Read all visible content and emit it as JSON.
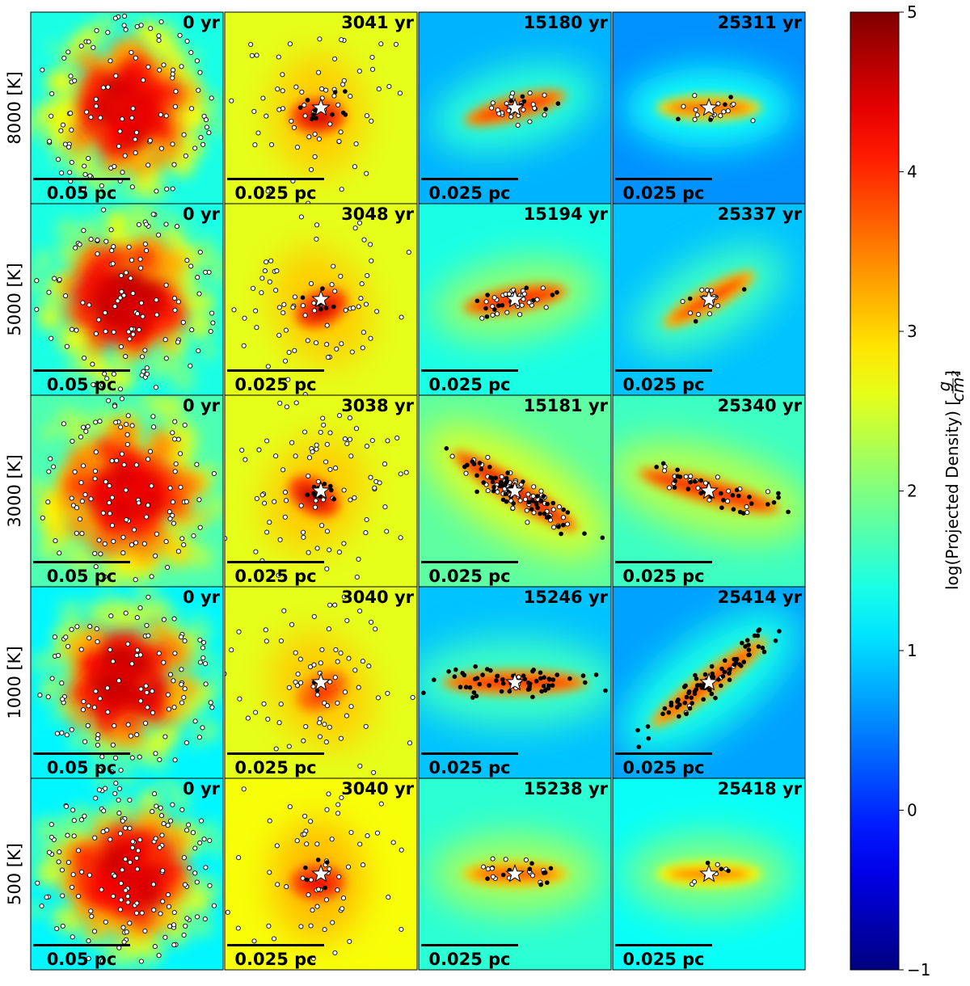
{
  "chart_data": {
    "type": "heatmap",
    "layout": "5 rows x 4 columns of projected density maps",
    "rows": [
      {
        "label": "8000 [K]",
        "times": [
          "0 yr",
          "3041 yr",
          "15180 yr",
          "25311 yr"
        ]
      },
      {
        "label": "5000 [K]",
        "times": [
          "0 yr",
          "3048 yr",
          "15194 yr",
          "25337 yr"
        ]
      },
      {
        "label": "3000 [K]",
        "times": [
          "0 yr",
          "3038 yr",
          "15181 yr",
          "25340 yr"
        ]
      },
      {
        "label": "1000 [K]",
        "times": [
          "0 yr",
          "3040 yr",
          "15246 yr",
          "25414 yr"
        ]
      },
      {
        "label": "500 [K]",
        "times": [
          "0 yr",
          "3040 yr",
          "15238 yr",
          "25418 yr"
        ]
      }
    ],
    "scalebars": [
      "0.05 pc",
      "0.025 pc",
      "0.025 pc",
      "0.025 pc"
    ],
    "colorbar": {
      "label": "log(Projected Density) [g/cm²]",
      "label_main": "log(Projected Density) [",
      "label_num": "g",
      "label_den": "cm²",
      "label_end": "]",
      "range": [
        -1,
        5
      ],
      "ticks": [
        "5",
        "4",
        "3",
        "2",
        "1",
        "0",
        "−1"
      ],
      "colormap": "jet"
    },
    "markers": {
      "star": "central sink (white star)",
      "open_circle": "white-filled particles",
      "filled_circle": "black-filled particles"
    },
    "panel_kind": [
      [
        "clump",
        "cloud",
        "blob",
        "blob"
      ],
      [
        "clump",
        "cloud",
        "blob",
        "blob"
      ],
      [
        "clump",
        "cloud",
        "filament",
        "filament"
      ],
      [
        "clump",
        "cloud",
        "filament",
        "filament"
      ],
      [
        "clump",
        "cloud",
        "blob",
        "blob"
      ]
    ],
    "background_level": [
      [
        1.4,
        2.6,
        0.8,
        0.6
      ],
      [
        1.4,
        2.6,
        1.4,
        0.9
      ],
      [
        1.7,
        2.6,
        1.8,
        1.6
      ],
      [
        1.2,
        2.6,
        0.9,
        0.7
      ],
      [
        1.2,
        2.7,
        1.5,
        1.3
      ]
    ],
    "peak_level": [
      [
        4.4,
        4.5,
        4.4,
        4.0
      ],
      [
        4.5,
        4.5,
        4.5,
        4.2
      ],
      [
        4.4,
        4.6,
        4.6,
        4.5
      ],
      [
        4.5,
        3.9,
        4.4,
        4.2
      ],
      [
        4.4,
        4.3,
        4.1,
        3.8
      ]
    ],
    "orientation_deg": [
      [
        0,
        0,
        -15,
        0
      ],
      [
        0,
        -25,
        -10,
        -30
      ],
      [
        0,
        30,
        32,
        15
      ],
      [
        0,
        -30,
        0,
        -37
      ],
      [
        0,
        0,
        0,
        0
      ]
    ],
    "open_circle_count": [
      [
        110,
        70,
        25,
        15
      ],
      [
        110,
        70,
        30,
        15
      ],
      [
        110,
        90,
        60,
        20
      ],
      [
        110,
        75,
        5,
        5
      ],
      [
        150,
        70,
        15,
        6
      ]
    ],
    "filled_circle_count": [
      [
        0,
        12,
        8,
        4
      ],
      [
        0,
        6,
        12,
        3
      ],
      [
        0,
        12,
        60,
        30
      ],
      [
        0,
        3,
        60,
        80
      ],
      [
        0,
        5,
        10,
        3
      ]
    ]
  }
}
